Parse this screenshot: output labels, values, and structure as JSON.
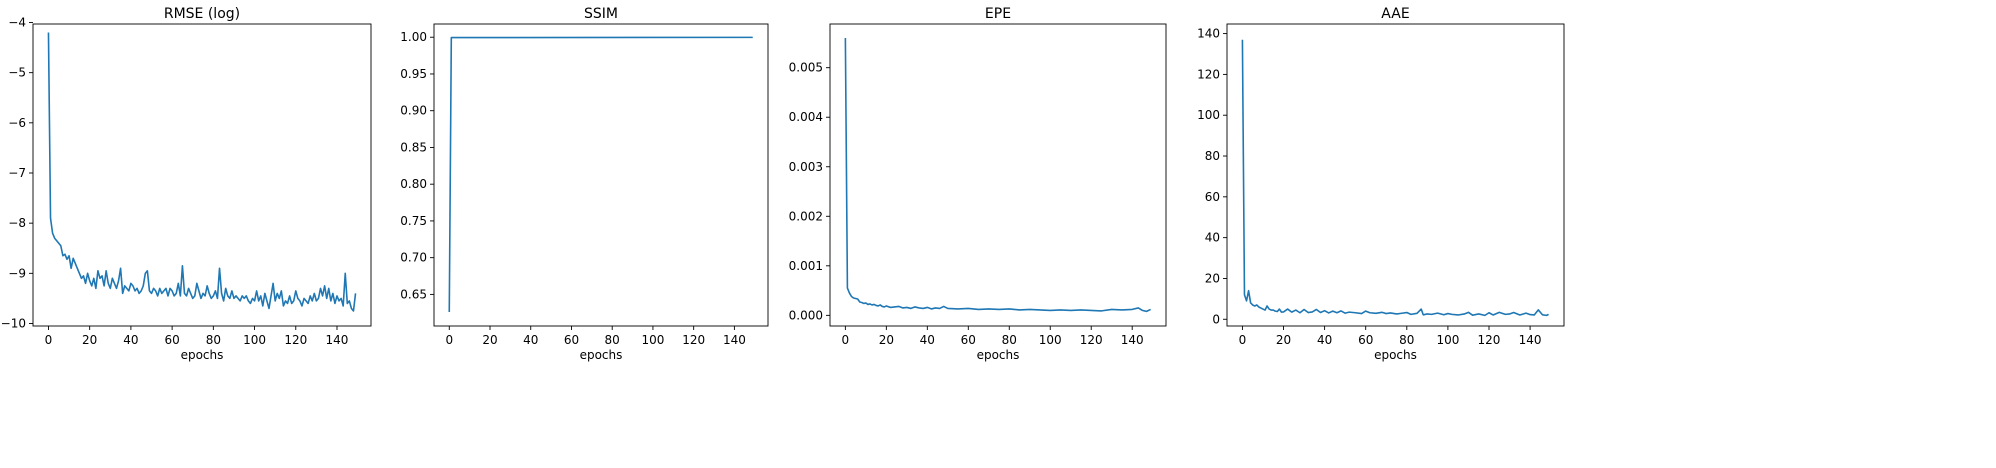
{
  "chart_data": [
    {
      "type": "line",
      "title": "RMSE (log)",
      "xlabel": "epochs",
      "ylabel": "",
      "xlim": [
        -7.5,
        156.5
      ],
      "ylim": [
        -10.05,
        -4.03
      ],
      "xticks": [
        0,
        20,
        40,
        60,
        80,
        100,
        120,
        140
      ],
      "yticks": [
        -10,
        -9,
        -8,
        -7,
        -6,
        -5,
        -4
      ],
      "line_color": "#1f77b4",
      "grid": false,
      "series": [
        {
          "x": [
            0,
            1,
            2,
            3,
            4,
            5,
            6,
            7,
            8,
            9,
            10,
            11,
            12,
            13,
            14,
            15,
            16,
            17,
            18,
            19,
            20,
            21,
            22,
            23,
            24,
            25,
            26,
            27,
            28,
            29,
            30,
            31,
            32,
            33,
            34,
            35,
            36,
            37,
            38,
            39,
            40,
            41,
            42,
            43,
            44,
            45,
            46,
            47,
            48,
            49,
            50,
            51,
            52,
            53,
            54,
            55,
            56,
            57,
            58,
            59,
            60,
            61,
            62,
            63,
            64,
            65,
            66,
            67,
            68,
            69,
            70,
            71,
            72,
            73,
            74,
            75,
            76,
            77,
            78,
            79,
            80,
            81,
            82,
            83,
            84,
            85,
            86,
            87,
            88,
            89,
            90,
            91,
            92,
            93,
            94,
            95,
            96,
            97,
            98,
            99,
            100,
            101,
            102,
            103,
            104,
            105,
            106,
            107,
            108,
            109,
            110,
            111,
            112,
            113,
            114,
            115,
            116,
            117,
            118,
            119,
            120,
            121,
            122,
            123,
            124,
            125,
            126,
            127,
            128,
            129,
            130,
            131,
            132,
            133,
            134,
            135,
            136,
            137,
            138,
            139,
            140,
            141,
            142,
            143,
            144,
            145,
            146,
            147,
            148,
            149
          ],
          "values": [
            -4.2,
            -7.9,
            -8.2,
            -8.3,
            -8.35,
            -8.4,
            -8.45,
            -8.65,
            -8.62,
            -8.72,
            -8.65,
            -8.9,
            -8.7,
            -8.8,
            -8.9,
            -9.0,
            -9.1,
            -9.05,
            -9.2,
            -9.0,
            -9.15,
            -9.25,
            -9.1,
            -9.3,
            -8.95,
            -9.1,
            -9.05,
            -9.25,
            -8.95,
            -9.2,
            -9.3,
            -9.1,
            -9.2,
            -9.3,
            -9.15,
            -8.9,
            -9.4,
            -9.25,
            -9.3,
            -9.35,
            -9.2,
            -9.25,
            -9.35,
            -9.3,
            -9.4,
            -9.35,
            -9.25,
            -9.0,
            -8.95,
            -9.35,
            -9.4,
            -9.3,
            -9.35,
            -9.45,
            -9.3,
            -9.4,
            -9.35,
            -9.3,
            -9.45,
            -9.3,
            -9.35,
            -9.45,
            -9.4,
            -9.2,
            -9.45,
            -8.85,
            -9.4,
            -9.45,
            -9.3,
            -9.4,
            -9.5,
            -9.45,
            -9.2,
            -9.35,
            -9.5,
            -9.4,
            -9.45,
            -9.25,
            -9.4,
            -9.5,
            -9.45,
            -9.35,
            -9.5,
            -8.9,
            -9.4,
            -9.55,
            -9.3,
            -9.45,
            -9.5,
            -9.35,
            -9.5,
            -9.45,
            -9.5,
            -9.55,
            -9.45,
            -9.5,
            -9.45,
            -9.55,
            -9.6,
            -9.5,
            -9.55,
            -9.35,
            -9.55,
            -9.45,
            -9.65,
            -9.4,
            -9.55,
            -9.7,
            -9.45,
            -9.2,
            -9.55,
            -9.4,
            -9.5,
            -9.35,
            -9.65,
            -9.55,
            -9.6,
            -9.45,
            -9.6,
            -9.55,
            -9.35,
            -9.5,
            -9.55,
            -9.65,
            -9.5,
            -9.55,
            -9.6,
            -9.45,
            -9.55,
            -9.4,
            -9.55,
            -9.5,
            -9.3,
            -9.45,
            -9.25,
            -9.5,
            -9.3,
            -9.55,
            -9.4,
            -9.6,
            -9.45,
            -9.55,
            -9.5,
            -9.65,
            -9.0,
            -9.6,
            -9.55,
            -9.7,
            -9.75,
            -9.4
          ]
        }
      ]
    },
    {
      "type": "line",
      "title": "SSIM",
      "xlabel": "epochs",
      "ylabel": "",
      "xlim": [
        -7.5,
        156.5
      ],
      "ylim": [
        0.607,
        1.018
      ],
      "xticks": [
        0,
        20,
        40,
        60,
        80,
        100,
        120,
        140
      ],
      "yticks": [
        0.65,
        0.7,
        0.75,
        0.8,
        0.85,
        0.9,
        0.95,
        1.0
      ],
      "ytick_labels": [
        "0.65",
        "0.70",
        "0.75",
        "0.80",
        "0.85",
        "0.90",
        "0.95",
        "1.00"
      ],
      "line_color": "#1f77b4",
      "grid": false,
      "series": [
        {
          "x": [
            0,
            1,
            149
          ],
          "values": [
            0.626,
            0.9995,
            0.9998
          ]
        }
      ]
    },
    {
      "type": "line",
      "title": "EPE",
      "xlabel": "epochs",
      "ylabel": "",
      "xlim": [
        -7.5,
        156.5
      ],
      "ylim": [
        -0.000215,
        0.005882
      ],
      "xticks": [
        0,
        20,
        40,
        60,
        80,
        100,
        120,
        140
      ],
      "yticks": [
        0.0,
        0.001,
        0.002,
        0.003,
        0.004,
        0.005
      ],
      "ytick_labels": [
        "0.000",
        "0.001",
        "0.002",
        "0.003",
        "0.004",
        "0.005"
      ],
      "line_color": "#1f77b4",
      "grid": false,
      "series": [
        {
          "x": [
            0,
            1,
            2,
            3,
            4,
            5,
            6,
            7,
            8,
            9,
            10,
            11,
            12,
            13,
            14,
            15,
            16,
            17,
            18,
            19,
            20,
            22,
            24,
            26,
            28,
            30,
            32,
            34,
            36,
            38,
            40,
            42,
            44,
            46,
            48,
            50,
            55,
            60,
            65,
            70,
            75,
            80,
            85,
            90,
            95,
            100,
            105,
            110,
            115,
            120,
            125,
            130,
            135,
            140,
            143,
            145,
            147,
            149
          ],
          "values": [
            0.0056,
            0.00055,
            0.00045,
            0.00038,
            0.00035,
            0.00034,
            0.00033,
            0.00027,
            0.00026,
            0.00024,
            0.00025,
            0.00022,
            0.00023,
            0.00021,
            0.00022,
            0.0002,
            0.00019,
            0.00021,
            0.00018,
            0.00017,
            0.00019,
            0.00016,
            0.00017,
            0.00018,
            0.00015,
            0.00016,
            0.00014,
            0.00017,
            0.00015,
            0.00014,
            0.00016,
            0.00013,
            0.00015,
            0.00014,
            0.00018,
            0.00014,
            0.00013,
            0.00014,
            0.00012,
            0.00013,
            0.00012,
            0.00013,
            0.00011,
            0.00012,
            0.00011,
            0.0001,
            0.00011,
            0.0001,
            0.00011,
            0.0001,
            9e-05,
            0.00012,
            0.00011,
            0.00012,
            0.00015,
            0.0001,
            8e-05,
            0.00012
          ]
        }
      ]
    },
    {
      "type": "line",
      "title": "AAE",
      "xlabel": "epochs",
      "ylabel": "",
      "xlim": [
        -7.5,
        156.5
      ],
      "ylim": [
        -3.3,
        144.7
      ],
      "xticks": [
        0,
        20,
        40,
        60,
        80,
        100,
        120,
        140
      ],
      "yticks": [
        0,
        20,
        40,
        60,
        80,
        100,
        120,
        140
      ],
      "line_color": "#1f77b4",
      "grid": false,
      "series": [
        {
          "x": [
            0,
            1,
            2,
            3,
            4,
            5,
            6,
            7,
            8,
            9,
            10,
            11,
            12,
            13,
            14,
            15,
            16,
            17,
            18,
            19,
            20,
            22,
            24,
            26,
            28,
            30,
            32,
            34,
            36,
            38,
            40,
            42,
            44,
            46,
            48,
            50,
            52,
            55,
            58,
            60,
            62,
            65,
            68,
            70,
            72,
            75,
            78,
            80,
            82,
            85,
            87,
            88,
            90,
            92,
            95,
            98,
            100,
            102,
            105,
            108,
            110,
            112,
            115,
            118,
            120,
            122,
            125,
            128,
            130,
            132,
            135,
            138,
            140,
            142,
            144,
            146,
            148,
            149
          ],
          "values": [
            137,
            12,
            9,
            14,
            8,
            7,
            6.5,
            7,
            6,
            5.5,
            5,
            4.5,
            6.5,
            5,
            4.5,
            4.5,
            4,
            3.8,
            5,
            3.5,
            3.6,
            5,
            3.5,
            4.5,
            3.2,
            4.8,
            3.3,
            3.6,
            4.8,
            3.3,
            4.2,
            3.1,
            4,
            3.2,
            4.1,
            3,
            3.5,
            3.2,
            2.8,
            4,
            3.2,
            2.9,
            3.4,
            2.8,
            3.1,
            2.6,
            3,
            3.3,
            2.4,
            2.9,
            5,
            2.2,
            2.6,
            2.4,
            3,
            2.2,
            2.8,
            2.4,
            2.1,
            2.6,
            3.4,
            2,
            2.6,
            1.9,
            3.2,
            2.1,
            3.4,
            2.4,
            2.6,
            3.3,
            2.1,
            3,
            2.3,
            2.1,
            4.6,
            2.2,
            1.9,
            2.4
          ]
        }
      ]
    }
  ]
}
